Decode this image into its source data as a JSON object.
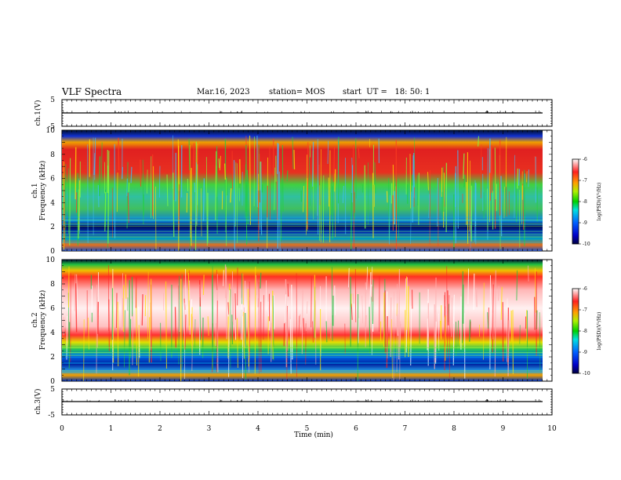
{
  "header": {
    "title": "VLF Spectra",
    "date": "Mar.16, 2023",
    "station": "station= MOS",
    "start": "start  UT =   18: 50: 1"
  },
  "chart_data": [
    {
      "type": "line",
      "panel": "ch1-waveform",
      "ylabel": "ch.1(V)",
      "ylim": [
        -5,
        5
      ],
      "yticks": [
        "5",
        "-5"
      ],
      "series": [
        {
          "x": [
            0,
            9.8
          ],
          "values": [
            0,
            0
          ]
        }
      ]
    },
    {
      "type": "heatmap",
      "panel": "ch1-spectrogram",
      "ylabel_line1": "ch.1",
      "ylabel_line2": "Frequency (kHz)",
      "ylim": [
        0,
        10
      ],
      "yticks": [
        "0",
        "2",
        "4",
        "6",
        "8",
        "10"
      ],
      "xlim": [
        0,
        10
      ],
      "colorbar": {
        "label": "log(PSD)(V²/Hz)",
        "range": [
          -10,
          -6
        ],
        "ticks": [
          "-6",
          "-7",
          "-8",
          "-9",
          "-10"
        ]
      }
    },
    {
      "type": "heatmap",
      "panel": "ch2-spectrogram",
      "ylabel_line1": "ch.2",
      "ylabel_line2": "Frequency (kHz)",
      "ylim": [
        0,
        10
      ],
      "yticks": [
        "0",
        "2",
        "4",
        "6",
        "8",
        "10"
      ],
      "xlim": [
        0,
        10
      ],
      "colorbar": {
        "label": "log(PSD)(V²/Hz)",
        "range": [
          -10,
          -6
        ],
        "ticks": [
          "-6",
          "-7",
          "-8",
          "-9",
          "-10"
        ]
      }
    },
    {
      "type": "line",
      "panel": "ch3-waveform",
      "ylabel": "ch.3(V)",
      "ylim": [
        -5,
        5
      ],
      "yticks": [
        "5",
        "-5"
      ],
      "xlabel": "Time (min)",
      "xlim": [
        0,
        10
      ],
      "xticks": [
        "0",
        "1",
        "2",
        "3",
        "4",
        "5",
        "6",
        "7",
        "8",
        "9",
        "10"
      ],
      "series": [
        {
          "x": [
            0,
            9.8
          ],
          "values": [
            0,
            0
          ]
        }
      ]
    }
  ]
}
